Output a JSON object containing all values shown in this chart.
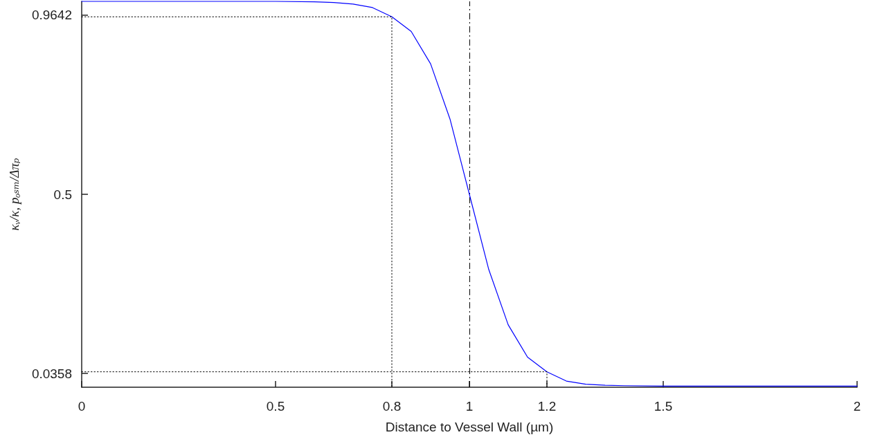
{
  "chart_data": {
    "type": "line",
    "xlabel": "Distance to Vessel Wall (µm)",
    "ylabel": "κᵥ/κ, pₒₛₘ/Δπₚ",
    "xlim": [
      0,
      2
    ],
    "ylim": [
      0,
      1
    ],
    "xticks": [
      0,
      0.5,
      0.8,
      1,
      1.2,
      1.5,
      2
    ],
    "yticks": [
      0.0358,
      0.5,
      0.9642
    ],
    "grid": false,
    "marker": "none",
    "series": [
      {
        "color": "#0000ff",
        "line_style": "solid",
        "x": [
          0,
          0.5,
          0.6,
          0.65,
          0.7,
          0.75,
          0.8,
          0.85,
          0.9,
          0.95,
          1,
          1.05,
          1.1,
          1.15,
          1.2,
          1.25,
          1.3,
          1.35,
          1.4,
          1.5,
          2
        ],
        "values": [
          1,
          1,
          0.999,
          0.997,
          0.993,
          0.984,
          0.96,
          0.922,
          0.838,
          0.695,
          0.5,
          0.305,
          0.162,
          0.078,
          0.04,
          0.016,
          0.008,
          0.005,
          0.004,
          0.003,
          0.003
        ]
      },
      {
        "color": "#000000",
        "line_style": "dotted",
        "x": [
          0,
          0.8,
          0.8
        ],
        "values": [
          0.96,
          0.96,
          0
        ]
      },
      {
        "color": "#000000",
        "line_style": "dotted",
        "x": [
          0,
          1.2,
          1.2
        ],
        "values": [
          0.04,
          0.04,
          0
        ]
      }
    ],
    "ref_lines": [
      {
        "axis": "x",
        "value": 1,
        "color": "#000000",
        "line_style": "dashed"
      }
    ]
  }
}
